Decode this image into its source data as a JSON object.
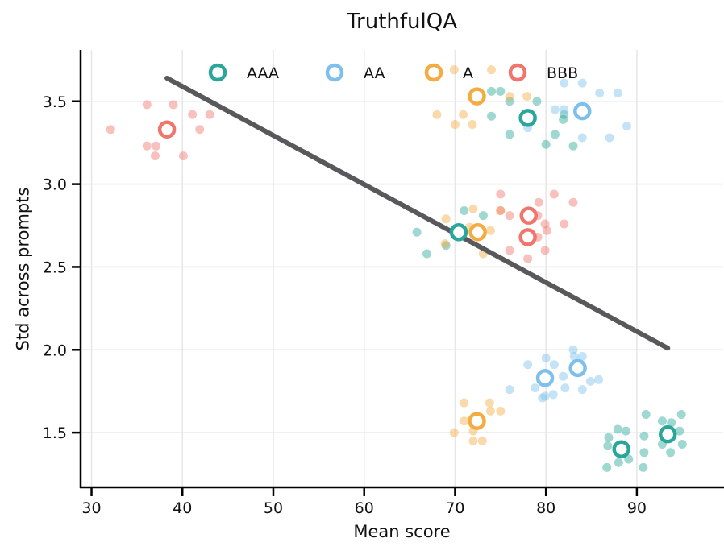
{
  "chart_data": {
    "type": "scatter",
    "title": "TruthfulQA",
    "xlabel": "Mean score",
    "ylabel": "Std across prompts",
    "xlim": [
      28.8,
      99.5
    ],
    "ylim": [
      1.17,
      3.81
    ],
    "xticks": [
      30,
      40,
      50,
      60,
      70,
      80,
      90
    ],
    "yticks": [
      1.5,
      2.0,
      2.5,
      3.0,
      3.5
    ],
    "grid": true,
    "background_color": "#ffffff",
    "grid_color": "#e7e7e7",
    "axis_color": "#000000",
    "trend_line": {
      "color": "#59595b",
      "points": [
        [
          38.3,
          3.64
        ],
        [
          93.4,
          2.01
        ]
      ]
    },
    "legend": {
      "position": "top-inside",
      "entries": [
        {
          "label": "AAA",
          "color": "#2aa69a"
        },
        {
          "label": "AA",
          "color": "#7ec0ec"
        },
        {
          "label": "A",
          "color": "#f3ac42"
        },
        {
          "label": "BBB",
          "color": "#f0756c"
        }
      ]
    },
    "series": [
      {
        "name": "AAA",
        "color": "#2aa69a",
        "centroids": [
          [
            78.0,
            3.4
          ],
          [
            70.4,
            2.71
          ],
          [
            88.3,
            1.4
          ],
          [
            93.4,
            1.49
          ]
        ],
        "points": [
          [
            74.0,
            3.56
          ],
          [
            75.0,
            3.56
          ],
          [
            76.0,
            3.5
          ],
          [
            79.0,
            3.5
          ],
          [
            74.0,
            3.41
          ],
          [
            76.0,
            3.3
          ],
          [
            80.0,
            3.24
          ],
          [
            81.0,
            3.3
          ],
          [
            82.0,
            3.42
          ],
          [
            81.9,
            3.39
          ],
          [
            83.0,
            3.23
          ],
          [
            65.8,
            2.71
          ],
          [
            66.9,
            2.58
          ],
          [
            71.0,
            2.84
          ],
          [
            73.1,
            2.81
          ],
          [
            69.0,
            2.63
          ],
          [
            86.9,
            1.47
          ],
          [
            87.9,
            1.52
          ],
          [
            88.8,
            1.51
          ],
          [
            86.8,
            1.42
          ],
          [
            86.7,
            1.29
          ],
          [
            88.0,
            1.32
          ],
          [
            89.1,
            1.34
          ],
          [
            90.8,
            1.38
          ],
          [
            90.7,
            1.29
          ],
          [
            90.8,
            1.48
          ],
          [
            91.0,
            1.61
          ],
          [
            92.8,
            1.57
          ],
          [
            93.8,
            1.56
          ],
          [
            94.9,
            1.61
          ],
          [
            94.7,
            1.51
          ],
          [
            95.0,
            1.43
          ],
          [
            93.7,
            1.38
          ],
          [
            92.8,
            1.43
          ]
        ]
      },
      {
        "name": "AA",
        "color": "#7ec0ec",
        "centroids": [
          [
            84.0,
            3.44
          ],
          [
            79.9,
            1.83
          ],
          [
            83.5,
            1.89
          ]
        ],
        "points": [
          [
            82.0,
            3.61
          ],
          [
            84.0,
            3.61
          ],
          [
            85.9,
            3.55
          ],
          [
            87.9,
            3.55
          ],
          [
            81.0,
            3.45
          ],
          [
            82.0,
            3.45
          ],
          [
            88.9,
            3.35
          ],
          [
            84.0,
            3.28
          ],
          [
            87.0,
            3.28
          ],
          [
            78.0,
            3.34
          ],
          [
            76.0,
            1.76
          ],
          [
            78.0,
            1.91
          ],
          [
            78.8,
            1.77
          ],
          [
            79.9,
            1.72
          ],
          [
            80.0,
            1.95
          ],
          [
            80.9,
            1.91
          ],
          [
            80.8,
            1.73
          ],
          [
            81.9,
            1.84
          ],
          [
            82.1,
            1.77
          ],
          [
            83.0,
            2.0
          ],
          [
            83.1,
            1.96
          ],
          [
            84.0,
            1.96
          ],
          [
            84.0,
            1.76
          ],
          [
            84.9,
            1.81
          ],
          [
            85.8,
            1.82
          ],
          [
            79.6,
            1.71
          ]
        ]
      },
      {
        "name": "A",
        "color": "#f3ac42",
        "centroids": [
          [
            72.4,
            3.53
          ],
          [
            72.5,
            2.71
          ],
          [
            72.4,
            1.57
          ]
        ],
        "points": [
          [
            69.9,
            3.69
          ],
          [
            74.0,
            3.69
          ],
          [
            76.0,
            3.53
          ],
          [
            77.9,
            3.53
          ],
          [
            68.0,
            3.42
          ],
          [
            70.9,
            3.42
          ],
          [
            70.0,
            3.36
          ],
          [
            71.9,
            3.36
          ],
          [
            69.0,
            2.79
          ],
          [
            72.0,
            2.85
          ],
          [
            75.0,
            2.84
          ],
          [
            73.9,
            2.72
          ],
          [
            71.6,
            2.74
          ],
          [
            68.9,
            2.64
          ],
          [
            73.1,
            2.58
          ],
          [
            71.0,
            1.68
          ],
          [
            73.8,
            1.68
          ],
          [
            73.9,
            1.63
          ],
          [
            75.0,
            1.63
          ],
          [
            71.0,
            1.57
          ],
          [
            69.9,
            1.5
          ],
          [
            72.0,
            1.51
          ],
          [
            72.0,
            1.45
          ],
          [
            73.0,
            1.45
          ]
        ]
      },
      {
        "name": "BBB",
        "color": "#f0756c",
        "centroids": [
          [
            38.3,
            3.33
          ],
          [
            78.1,
            2.81
          ],
          [
            78.0,
            2.68
          ]
        ],
        "points": [
          [
            32.1,
            3.33
          ],
          [
            36.1,
            3.48
          ],
          [
            39.0,
            3.48
          ],
          [
            41.1,
            3.42
          ],
          [
            43.0,
            3.42
          ],
          [
            41.9,
            3.33
          ],
          [
            36.1,
            3.23
          ],
          [
            37.1,
            3.23
          ],
          [
            37.0,
            3.17
          ],
          [
            40.1,
            3.17
          ],
          [
            75.0,
            2.94
          ],
          [
            80.9,
            2.94
          ],
          [
            79.2,
            2.89
          ],
          [
            83.0,
            2.89
          ],
          [
            76.0,
            2.81
          ],
          [
            79.1,
            2.81
          ],
          [
            79.9,
            2.76
          ],
          [
            82.0,
            2.76
          ],
          [
            80.1,
            2.72
          ],
          [
            79.1,
            2.68
          ],
          [
            79.9,
            2.6
          ],
          [
            76.0,
            2.6
          ],
          [
            78.0,
            2.55
          ],
          [
            75.0,
            2.84
          ]
        ]
      }
    ]
  }
}
